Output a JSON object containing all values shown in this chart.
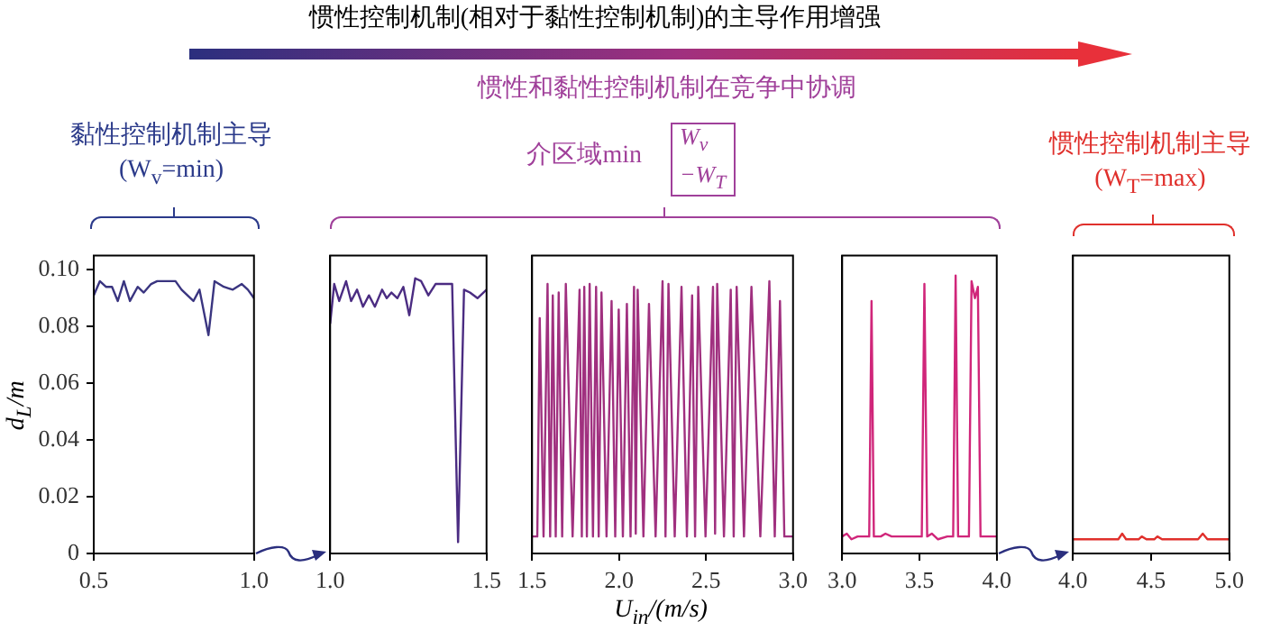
{
  "chart_data": [
    {
      "type": "other",
      "title": "惯性控制机制(相对于黏性控制机制)的主导作用增强",
      "annotations": [
        "惯性和黏性控制机制在竞争中协调",
        "黏性控制机制主导",
        "(W$_{v}$=min)",
        "介区域min",
        "W$_{v}$",
        "−W$_{T}$",
        "惯性控制机制主导",
        "(W$_{T}$=max)"
      ]
    },
    {
      "type": "line",
      "ylabel": "d$_{L}$/m",
      "color": "#3a3580",
      "x": [
        0.5,
        0.519,
        0.538,
        0.557,
        0.575,
        0.594,
        0.613,
        0.637,
        0.656,
        0.679,
        0.698,
        0.755,
        0.774,
        0.811,
        0.83,
        0.858,
        0.877,
        0.906,
        0.934,
        0.962,
        0.981,
        1.0
      ],
      "values": [
        0.091,
        0.096,
        0.094,
        0.094,
        0.089,
        0.096,
        0.089,
        0.094,
        0.092,
        0.095,
        0.096,
        0.096,
        0.093,
        0.089,
        0.093,
        0.077,
        0.096,
        0.094,
        0.093,
        0.095,
        0.093,
        0.09
      ],
      "xlim": [
        0.5,
        1.0
      ],
      "xticks": [
        0.5,
        {
          "value": 1,
          "label": "1.0"
        }
      ],
      "ylim": [
        0,
        0.105
      ],
      "yticks": [
        0,
        0.02,
        0.04,
        0.06,
        0.08,
        {
          "value": 0.1,
          "label": "0.10"
        }
      ]
    },
    {
      "type": "line",
      "color": "#4b2c82",
      "tick_labels": "x",
      "x": [
        1.0,
        1.013,
        1.029,
        1.051,
        1.067,
        1.086,
        1.105,
        1.124,
        1.143,
        1.166,
        1.181,
        1.196,
        1.215,
        1.234,
        1.253,
        1.272,
        1.291,
        1.314,
        1.337,
        1.39,
        1.409,
        1.428,
        1.447,
        1.471,
        1.5
      ],
      "values": [
        0.081,
        0.095,
        0.089,
        0.096,
        0.089,
        0.093,
        0.087,
        0.091,
        0.087,
        0.093,
        0.09,
        0.092,
        0.09,
        0.094,
        0.084,
        0.097,
        0.096,
        0.091,
        0.095,
        0.095,
        0.004,
        0.093,
        0.092,
        0.09,
        0.093
      ],
      "xlim": [
        1.0,
        1.5
      ],
      "xticks": [
        {
          "value": 1,
          "label": "1.0"
        },
        1.5
      ],
      "ylim": [
        0,
        0.105
      ]
    },
    {
      "type": "line",
      "xlabel": "U$_{in}$/(m/s)",
      "color": "#a0307f",
      "tick_labels": "x",
      "x": [
        1.5,
        1.53,
        1.544,
        1.566,
        1.589,
        1.604,
        1.619,
        1.636,
        1.653,
        1.673,
        1.694,
        1.733,
        1.773,
        1.786,
        1.8,
        1.815,
        1.831,
        1.85,
        1.868,
        1.883,
        1.899,
        1.928,
        1.957,
        1.978,
        1.998,
        2.022,
        2.045,
        2.066,
        2.086,
        2.096,
        2.107,
        2.14,
        2.172,
        2.21,
        2.25,
        2.267,
        2.284,
        2.32,
        2.359,
        2.39,
        2.42,
        2.437,
        2.455,
        2.497,
        2.54,
        2.552,
        2.564,
        2.603,
        2.642,
        2.659,
        2.676,
        2.718,
        2.761,
        2.812,
        2.864,
        2.895,
        2.925,
        2.95,
        3.0
      ],
      "values": [
        0.006,
        0.006,
        0.083,
        0.006,
        0.095,
        0.006,
        0.091,
        0.006,
        0.092,
        0.006,
        0.095,
        0.006,
        0.093,
        0.006,
        0.094,
        0.006,
        0.095,
        0.006,
        0.094,
        0.006,
        0.092,
        0.006,
        0.089,
        0.006,
        0.086,
        0.006,
        0.088,
        0.006,
        0.094,
        0.007,
        0.093,
        0.006,
        0.088,
        0.006,
        0.096,
        0.006,
        0.095,
        0.006,
        0.094,
        0.006,
        0.091,
        0.006,
        0.094,
        0.006,
        0.094,
        0.007,
        0.095,
        0.006,
        0.093,
        0.006,
        0.094,
        0.006,
        0.094,
        0.006,
        0.096,
        0.006,
        0.089,
        0.006,
        0.006
      ],
      "xlim": [
        1.5,
        3.0
      ],
      "xticks": [
        1.5,
        {
          "value": 2,
          "label": "2.0"
        },
        2.5,
        {
          "value": 3,
          "label": "3.0"
        }
      ],
      "ylim": [
        0,
        0.105
      ]
    },
    {
      "type": "line",
      "color": "#d0267a",
      "tick_labels": "x",
      "x": [
        3.0,
        3.03,
        3.06,
        3.1,
        3.15,
        3.175,
        3.19,
        3.205,
        3.25,
        3.28,
        3.32,
        3.4,
        3.45,
        3.515,
        3.532,
        3.55,
        3.58,
        3.62,
        3.68,
        3.718,
        3.734,
        3.75,
        3.8,
        3.82,
        3.837,
        3.859,
        3.878,
        3.895,
        3.95,
        4.0
      ],
      "values": [
        0.006,
        0.007,
        0.005,
        0.006,
        0.006,
        0.006,
        0.089,
        0.006,
        0.006,
        0.007,
        0.006,
        0.006,
        0.006,
        0.006,
        0.095,
        0.006,
        0.007,
        0.005,
        0.006,
        0.006,
        0.098,
        0.006,
        0.006,
        0.006,
        0.096,
        0.09,
        0.094,
        0.006,
        0.006,
        0.006
      ],
      "xlim": [
        3.0,
        4.0
      ],
      "xticks": [
        {
          "value": 3,
          "label": "3.0"
        },
        3.5,
        {
          "value": 4,
          "label": "4.0"
        }
      ],
      "ylim": [
        0,
        0.105
      ]
    },
    {
      "type": "line",
      "color": "#e0302c",
      "tick_labels": "x",
      "x": [
        4.0,
        4.29,
        4.315,
        4.34,
        4.42,
        4.44,
        4.47,
        4.52,
        4.54,
        4.57,
        4.8,
        4.83,
        4.86,
        5.0
      ],
      "values": [
        0.005,
        0.005,
        0.007,
        0.005,
        0.005,
        0.006,
        0.005,
        0.005,
        0.006,
        0.005,
        0.005,
        0.007,
        0.005,
        0.005
      ],
      "xlim": [
        4.0,
        5.0
      ],
      "xticks": [
        {
          "value": 4,
          "label": "4.0"
        },
        4.5,
        {
          "value": 5,
          "label": "5.0"
        }
      ],
      "ylim": [
        0,
        0.105
      ]
    }
  ]
}
